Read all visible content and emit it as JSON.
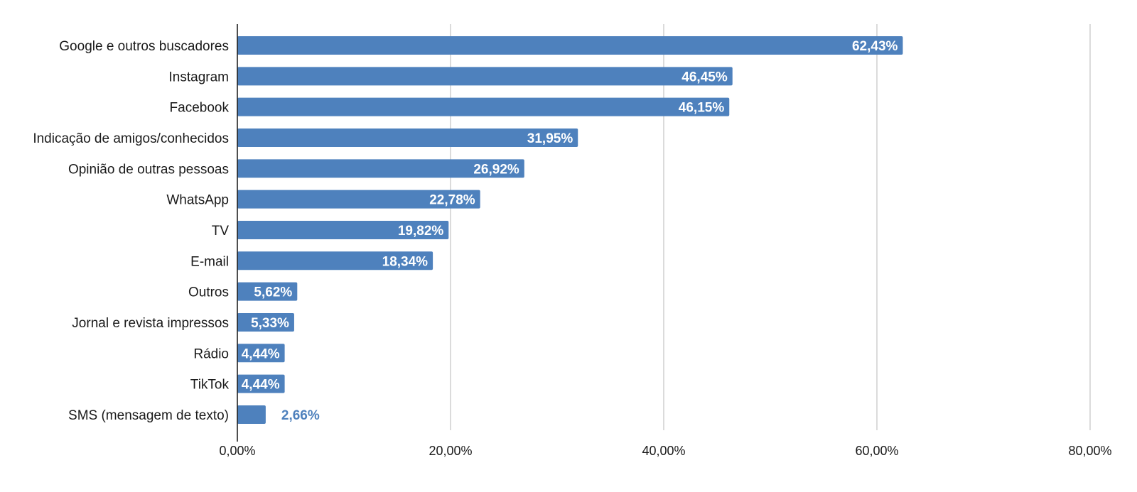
{
  "chart_data": {
    "type": "bar",
    "orientation": "horizontal",
    "categories": [
      "Google e outros buscadores",
      "Instagram",
      "Facebook",
      "Indicação de amigos/conhecidos",
      "Opinião de outras pessoas",
      "WhatsApp",
      "TV",
      "E-mail",
      "Outros",
      "Jornal e revista impressos",
      "Rádio",
      "TikTok",
      "SMS (mensagem de texto)"
    ],
    "values": [
      62.43,
      46.45,
      46.15,
      31.95,
      26.92,
      22.78,
      19.82,
      18.34,
      5.62,
      5.33,
      4.44,
      4.44,
      2.66
    ],
    "data_labels": [
      "62,43%",
      "46,45%",
      "46,15%",
      "31,95%",
      "26,92%",
      "22,78%",
      "19,82%",
      "18,34%",
      "5,62%",
      "5,33%",
      "4,44%",
      "4,44%",
      "2,66%"
    ],
    "xlim": [
      0,
      80
    ],
    "xticks": [
      0,
      20,
      40,
      60,
      80
    ],
    "xtick_labels": [
      "0,00%",
      "20,00%",
      "40,00%",
      "60,00%",
      "80,00%"
    ],
    "grid": "vertical",
    "legend": "none",
    "colors": {
      "bar": "#4e81bd",
      "label_inside": "#ffffff",
      "label_outside": "#4e81bd"
    }
  }
}
